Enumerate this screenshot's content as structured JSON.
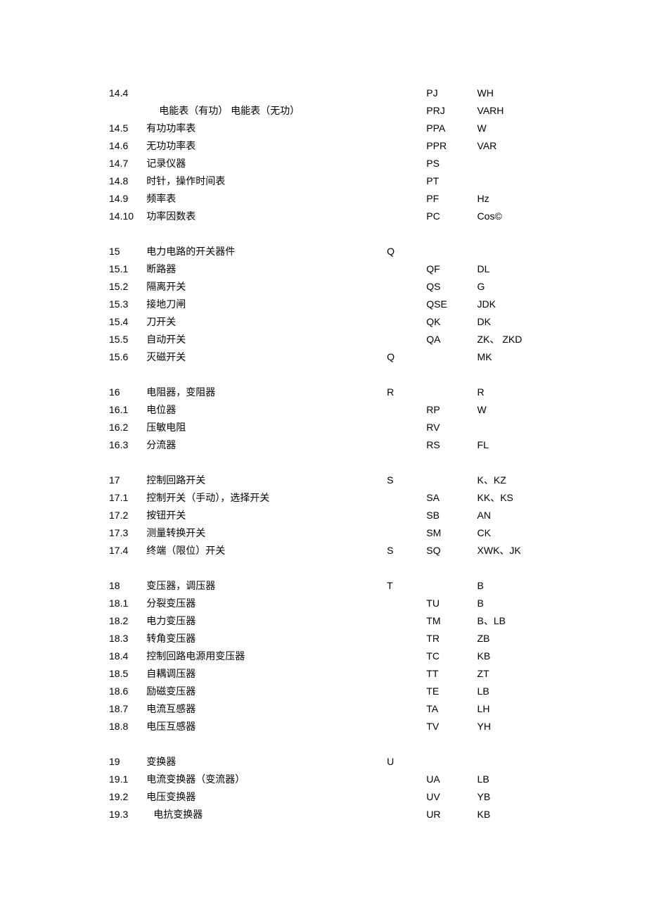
{
  "text_color": "#000000",
  "border_color": "#000000",
  "background_color": "#ffffff",
  "font_size": 14,
  "line_height": 25,
  "column_widths": {
    "num": 54,
    "name": 336,
    "c": 58,
    "d": 74,
    "e": 86
  },
  "rows": [
    {
      "num": "14.4",
      "name": "",
      "c": "",
      "d": "PJ",
      "e": "WH"
    },
    {
      "num": "",
      "name": "电能表（有功）  电能表（无功）",
      "c": "",
      "d": "PRJ",
      "e": "VARH",
      "indent": true
    },
    {
      "num": "14.5",
      "name": "有功功率表",
      "c": "",
      "d": "PPA",
      "e": "W"
    },
    {
      "num": "14.6",
      "name": "无功功率表",
      "c": "",
      "d": "PPR",
      "e": "VAR"
    },
    {
      "num": "14.7",
      "name": "记录仪器",
      "c": "",
      "d": "PS",
      "e": ""
    },
    {
      "num": "14.8",
      "name": "时针，操作时间表",
      "c": "",
      "d": "PT",
      "e": ""
    },
    {
      "num": "14.9",
      "name": "频率表",
      "c": "",
      "d": "PF",
      "e": "Hz"
    },
    {
      "num": "14.10",
      "name": "功率因数表",
      "c": "",
      "d": "PC",
      "e": "Cos©"
    },
    {
      "spacer": true
    },
    {
      "num": "15",
      "name": "电力电路的开关器件",
      "c": "Q",
      "d": "",
      "e": ""
    },
    {
      "num": "15.1",
      "name": "断路器",
      "c": "",
      "d": "QF",
      "e": "DL",
      "hline_name": true
    },
    {
      "num": "15.2",
      "name": "隔离开关",
      "c": "",
      "d": "QS",
      "e": "G"
    },
    {
      "num": "15.3",
      "name": "接地刀闸",
      "c": "",
      "d": "QSE",
      "e": "JDK"
    },
    {
      "num": "15.4",
      "name": "刀开关",
      "c": "",
      "d": "QK",
      "e": "DK"
    },
    {
      "num": "15.5",
      "name": "自动开关",
      "c": "",
      "d": "QA",
      "e": "ZK、  ZKD"
    },
    {
      "num": "15.6",
      "name": "灭磁开关",
      "c": "Q",
      "d": "",
      "e": "MK"
    },
    {
      "spacer": true
    },
    {
      "num": "16",
      "name": "电阻器，变阻器",
      "c": "R",
      "d": "",
      "e": "R"
    },
    {
      "num": "16.1",
      "name": "电位器",
      "c": "",
      "d": "RP",
      "e": "W"
    },
    {
      "num": "16.2",
      "name": "压敏电阻",
      "c": "",
      "d": "RV",
      "e": ""
    },
    {
      "num": "16.3",
      "name": "分流器",
      "c": "",
      "d": "RS",
      "e": "FL"
    },
    {
      "spacer": true
    },
    {
      "num": "17",
      "name": "控制回路开关",
      "c": "S",
      "d": "",
      "e": "K、KZ"
    },
    {
      "num": "17.1",
      "name": "控制开关（手动），选择开关",
      "c": "",
      "d": "SA",
      "e": "KK、KS"
    },
    {
      "num": "17.2",
      "name": "按钮开关",
      "c": "",
      "d": "SB",
      "e": "AN"
    },
    {
      "num": "17.3",
      "name": "测量转换开关",
      "c": "",
      "d": "SM",
      "e": "CK"
    },
    {
      "num": "17.4",
      "name": "终端（限位）开关",
      "c": "S",
      "d": "SQ",
      "e": "XWK、JK"
    },
    {
      "spacer": true
    },
    {
      "num": "18",
      "name": "变压器，调压器",
      "c": "T",
      "d": "",
      "e": "B"
    },
    {
      "num": "18.1",
      "name": "分裂变压器",
      "c": "",
      "d": "TU",
      "e": "B"
    },
    {
      "num": "18.2",
      "name": "电力变压器",
      "c": "",
      "d": "TM",
      "e": "B、LB"
    },
    {
      "num": "18.3",
      "name": "转角变压器",
      "c": "",
      "d": "TR",
      "e": "ZB"
    },
    {
      "num": "18.4",
      "name": "控制回路电源用变压器",
      "c": "",
      "d": "TC",
      "e": "KB"
    },
    {
      "num": "18.5",
      "name": "自耦调压器",
      "c": "",
      "d": "TT",
      "e": "ZT"
    },
    {
      "num": "18.6",
      "name": "励磁变压器",
      "c": "",
      "d": "TE",
      "e": "LB"
    },
    {
      "num": "18.7",
      "name": "电流互感器",
      "c": "",
      "d": "TA",
      "e": "LH"
    },
    {
      "num": "18.8",
      "name": "电压互感器",
      "c": "",
      "d": "TV",
      "e": "YH"
    },
    {
      "spacer": true
    },
    {
      "num": "19",
      "name": "变换器",
      "c": "U",
      "d": "",
      "e": ""
    },
    {
      "num": "19.1",
      "name": "电流变换器（变流器）",
      "c": "",
      "d": "UA",
      "e": "LB"
    },
    {
      "num": "19.2",
      "name": "电压变换器",
      "c": "",
      "d": "UV",
      "e": "YB"
    },
    {
      "num": "19.3",
      "name": "电抗变换器",
      "c": "",
      "d": "UR",
      "e": "KB",
      "indent_small": true
    },
    {
      "spacer": true
    }
  ]
}
